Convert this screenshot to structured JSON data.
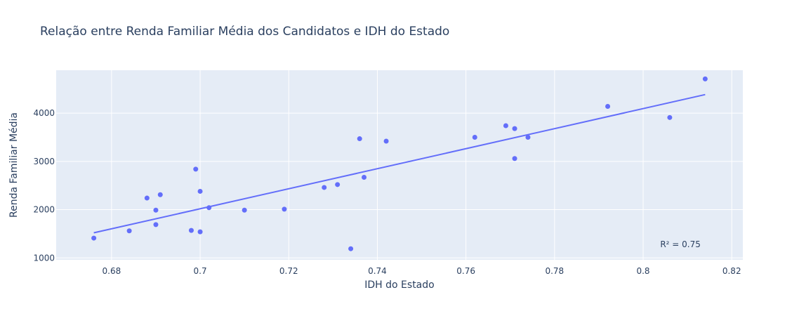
{
  "chart_data": {
    "type": "scatter",
    "title": "Relação entre Renda Familiar Média dos Candidatos e IDH do Estado",
    "xlabel": "IDH do Estado",
    "ylabel": "Renda Familiar Média",
    "xlim": [
      0.6675,
      0.8225
    ],
    "ylim": [
      960,
      4890
    ],
    "x_ticks": [
      0.68,
      0.7,
      0.72,
      0.74,
      0.76,
      0.78,
      0.8,
      0.82
    ],
    "x_tick_labels": [
      "0.68",
      "0.7",
      "0.72",
      "0.74",
      "0.76",
      "0.78",
      "0.8",
      "0.82"
    ],
    "y_ticks": [
      1000,
      2000,
      3000,
      4000
    ],
    "y_tick_labels": [
      "1000",
      "2000",
      "3000",
      "4000"
    ],
    "grid": true,
    "colors": {
      "marker": "#636efa",
      "line": "#636efa",
      "plot_bg": "#e5ecf6",
      "grid": "#ffffff",
      "text": "#2a3f5f"
    },
    "points": [
      {
        "x": 0.676,
        "y": 1410
      },
      {
        "x": 0.684,
        "y": 1560
      },
      {
        "x": 0.688,
        "y": 2240
      },
      {
        "x": 0.69,
        "y": 1990
      },
      {
        "x": 0.69,
        "y": 1690
      },
      {
        "x": 0.691,
        "y": 2310
      },
      {
        "x": 0.698,
        "y": 1570
      },
      {
        "x": 0.699,
        "y": 2840
      },
      {
        "x": 0.7,
        "y": 2380
      },
      {
        "x": 0.7,
        "y": 1540
      },
      {
        "x": 0.702,
        "y": 2040
      },
      {
        "x": 0.71,
        "y": 1990
      },
      {
        "x": 0.719,
        "y": 2010
      },
      {
        "x": 0.728,
        "y": 2460
      },
      {
        "x": 0.731,
        "y": 2520
      },
      {
        "x": 0.734,
        "y": 1190
      },
      {
        "x": 0.736,
        "y": 3470
      },
      {
        "x": 0.737,
        "y": 2670
      },
      {
        "x": 0.742,
        "y": 3420
      },
      {
        "x": 0.762,
        "y": 3500
      },
      {
        "x": 0.769,
        "y": 3740
      },
      {
        "x": 0.771,
        "y": 3680
      },
      {
        "x": 0.771,
        "y": 3060
      },
      {
        "x": 0.774,
        "y": 3500
      },
      {
        "x": 0.792,
        "y": 4140
      },
      {
        "x": 0.806,
        "y": 3910
      },
      {
        "x": 0.814,
        "y": 4710
      }
    ],
    "trendline": {
      "x": [
        0.676,
        0.814
      ],
      "y": [
        1520,
        4385
      ]
    },
    "annotation": "R² = 0.75",
    "annotation_position": {
      "x": 0.81,
      "y": 1250
    }
  }
}
